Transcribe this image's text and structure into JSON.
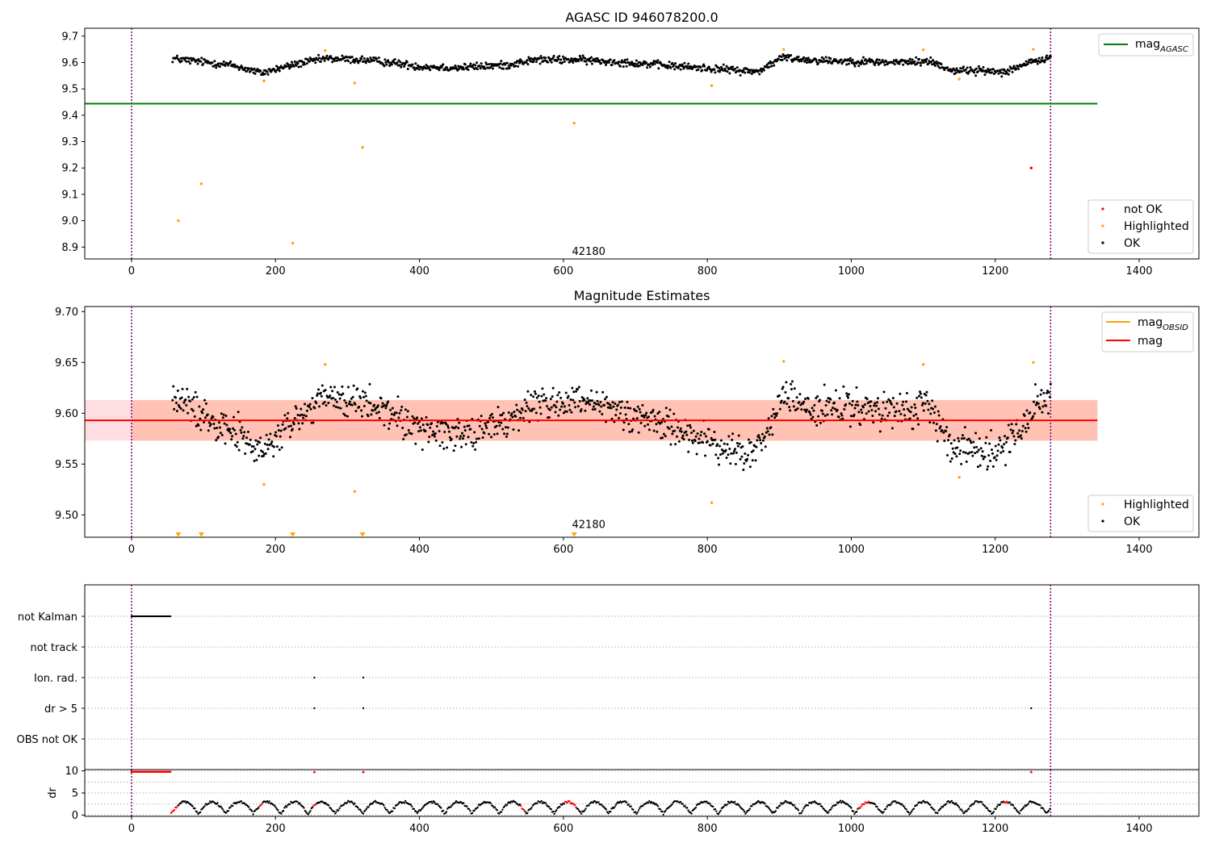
{
  "colors": {
    "ok": "#000000",
    "highlighted": "#ffa500",
    "not_ok": "#ff0000",
    "agasc": "#008000",
    "mag": "#ff0000",
    "obsid_band": "#ffa500",
    "range": "#800080",
    "band_outer": "#ffb6c1",
    "band_inner": "#ffa07a"
  },
  "chart_data": [
    {
      "type": "scatter",
      "title": "AGASC ID 946078200.0",
      "xlim": [
        -65,
        1483
      ],
      "ylim": [
        8.855,
        9.73
      ],
      "xticks": [
        0,
        200,
        400,
        600,
        800,
        1000,
        1200,
        1400
      ],
      "yticks": [
        8.9,
        9.0,
        9.1,
        9.2,
        9.3,
        9.4,
        9.5,
        9.6,
        9.7
      ],
      "ytick_labels": [
        "8.9",
        "9.0",
        "9.1",
        "9.2",
        "9.3",
        "9.4",
        "9.5",
        "9.6",
        "9.7"
      ],
      "vlines": [
        0,
        1277
      ],
      "hline": {
        "name": "mag_AGASC",
        "y": 9.444,
        "x": [
          -65,
          1342
        ]
      },
      "annotation": {
        "text": "42180",
        "x": 615,
        "y": 8.87
      },
      "legend_top": {
        "label": "mag",
        "sub": "AGASC"
      },
      "legend_bottom": [
        "not OK",
        "Highlighted",
        "OK"
      ],
      "series": [
        {
          "name": "not OK",
          "points": [
            [
              1250,
              9.2
            ]
          ]
        },
        {
          "name": "Highlighted",
          "points": [
            [
              65,
              9.0
            ],
            [
              97,
              9.14
            ],
            [
              184,
              9.53
            ],
            [
              224,
              8.915
            ],
            [
              269,
              9.645
            ],
            [
              310,
              9.522
            ],
            [
              321,
              9.278
            ],
            [
              615,
              9.37
            ],
            [
              806,
              9.512
            ],
            [
              906,
              9.65
            ],
            [
              1100,
              9.648
            ],
            [
              1150,
              9.537
            ],
            [
              1253,
              9.65
            ]
          ]
        },
        {
          "name": "OK",
          "x_range": [
            57,
            1277
          ],
          "count": 1150,
          "baseline": [
            [
              57,
              9.615
            ],
            [
              140,
              9.59
            ],
            [
              180,
              9.56
            ],
            [
              230,
              9.595
            ],
            [
              270,
              9.615
            ],
            [
              320,
              9.61
            ],
            [
              360,
              9.6
            ],
            [
              400,
              9.585
            ],
            [
              450,
              9.58
            ],
            [
              520,
              9.59
            ],
            [
              560,
              9.61
            ],
            [
              620,
              9.61
            ],
            [
              690,
              9.6
            ],
            [
              760,
              9.585
            ],
            [
              820,
              9.575
            ],
            [
              870,
              9.565
            ],
            [
              905,
              9.62
            ],
            [
              940,
              9.61
            ],
            [
              1000,
              9.605
            ],
            [
              1060,
              9.6
            ],
            [
              1110,
              9.605
            ],
            [
              1140,
              9.57
            ],
            [
              1170,
              9.57
            ],
            [
              1210,
              9.565
            ],
            [
              1250,
              9.6
            ],
            [
              1277,
              9.62
            ]
          ],
          "noise": 0.012
        }
      ]
    },
    {
      "type": "scatter",
      "title": "Magnitude Estimates",
      "xlim": [
        -65,
        1483
      ],
      "ylim": [
        9.478,
        9.705
      ],
      "xticks": [
        0,
        200,
        400,
        600,
        800,
        1000,
        1200,
        1400
      ],
      "yticks": [
        9.5,
        9.55,
        9.6,
        9.65,
        9.7
      ],
      "ytick_labels": [
        "9.50",
        "9.55",
        "9.60",
        "9.65",
        "9.70"
      ],
      "vlines": [
        0,
        1277
      ],
      "mag_line": {
        "y": 9.593,
        "x": [
          -65,
          1342
        ]
      },
      "band_outer": [
        9.573,
        9.613
      ],
      "band_inner": [
        9.573,
        9.613
      ],
      "band_inner_x": [
        0,
        1342
      ],
      "annotation": {
        "text": "42180",
        "x": 615,
        "y": 9.487
      },
      "legend_top": [
        {
          "label": "mag",
          "sub": "OBSID"
        },
        {
          "label": "mag",
          "sub": ""
        }
      ],
      "legend_bottom": [
        "Highlighted",
        "OK"
      ],
      "series": [
        {
          "name": "Highlighted",
          "points": [
            [
              184,
              9.53
            ],
            [
              269,
              9.648
            ],
            [
              310,
              9.523
            ],
            [
              806,
              9.512
            ],
            [
              906,
              9.651
            ],
            [
              1100,
              9.648
            ],
            [
              1150,
              9.537
            ],
            [
              1253,
              9.65
            ]
          ]
        },
        {
          "name": "Highlighted (below range)",
          "marker": "triangle-down",
          "points": [
            [
              65,
              9.478
            ],
            [
              97,
              9.478
            ],
            [
              224,
              9.478
            ],
            [
              321,
              9.478
            ],
            [
              615,
              9.478
            ]
          ]
        },
        {
          "name": "OK",
          "x_range": [
            57,
            1277
          ],
          "count": 1150,
          "baseline": [
            [
              57,
              9.615
            ],
            [
              140,
              9.585
            ],
            [
              180,
              9.56
            ],
            [
              230,
              9.595
            ],
            [
              270,
              9.615
            ],
            [
              320,
              9.61
            ],
            [
              360,
              9.6
            ],
            [
              400,
              9.585
            ],
            [
              450,
              9.58
            ],
            [
              520,
              9.59
            ],
            [
              560,
              9.61
            ],
            [
              620,
              9.61
            ],
            [
              690,
              9.6
            ],
            [
              760,
              9.585
            ],
            [
              820,
              9.565
            ],
            [
              860,
              9.56
            ],
            [
              885,
              9.58
            ],
            [
              905,
              9.62
            ],
            [
              940,
              9.605
            ],
            [
              1000,
              9.605
            ],
            [
              1060,
              9.6
            ],
            [
              1110,
              9.605
            ],
            [
              1140,
              9.57
            ],
            [
              1170,
              9.565
            ],
            [
              1210,
              9.565
            ],
            [
              1250,
              9.6
            ],
            [
              1277,
              9.62
            ]
          ],
          "noise": 0.014
        }
      ]
    },
    {
      "type": "scatter",
      "title": "",
      "xlim": [
        -65,
        1483
      ],
      "vlines": [
        0,
        1277
      ],
      "flag_rows": [
        "not Kalman",
        "not track",
        "Ion. rad.",
        "dr > 5",
        "OBS not OK"
      ],
      "flag_points": [
        {
          "row": "not Kalman",
          "range": [
            0,
            55
          ]
        },
        {
          "row": "Ion. rad.",
          "points": [
            254,
            322
          ]
        },
        {
          "row": "dr > 5",
          "points": [
            254,
            322,
            1250
          ]
        }
      ]
    },
    {
      "type": "scatter",
      "title": "",
      "ylabel": "dr",
      "xlim": [
        -65,
        1483
      ],
      "ylim": [
        -0.3,
        10.3
      ],
      "xticks": [
        0,
        200,
        400,
        600,
        800,
        1000,
        1200,
        1400
      ],
      "yticks": [
        0,
        5,
        10
      ],
      "ytick_labels": [
        "0",
        "5",
        "10"
      ],
      "vlines": [
        0,
        1277
      ],
      "clipped_red": {
        "range": [
          0,
          55
        ],
        "points": [
          254,
          322,
          1250
        ],
        "y": 9.8
      },
      "red_segments": [
        [
          55,
          64
        ],
        [
          178,
          182
        ],
        [
          252,
          256
        ],
        [
          540,
          546
        ],
        [
          602,
          618
        ],
        [
          1010,
          1024
        ],
        [
          1212,
          1218
        ]
      ],
      "wave": {
        "x_range": [
          55,
          1277
        ],
        "step": 1.5,
        "period": 38,
        "low": 0.3,
        "high": 3.0
      }
    }
  ]
}
